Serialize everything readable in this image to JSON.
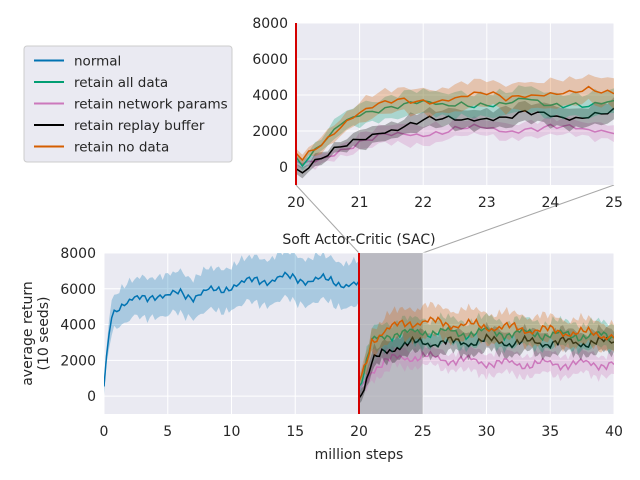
{
  "chart_data": [
    {
      "id": "main",
      "type": "line",
      "title": "Soft Actor-Critic (SAC)",
      "xlabel": "million steps",
      "ylabel": [
        "average return",
        "(10 seeds)"
      ],
      "xlim": [
        0,
        40
      ],
      "ylim": [
        -1000,
        8000
      ],
      "xticks": [
        0,
        5,
        10,
        15,
        20,
        25,
        30,
        35,
        40
      ],
      "yticks": [
        0,
        2000,
        4000,
        6000,
        8000
      ],
      "grid": true,
      "event_line_x": 20,
      "zoom_region": [
        20,
        25
      ],
      "series": [
        {
          "name": "normal",
          "color": "#0173b2",
          "x": [
            0,
            0.5,
            1,
            2,
            3,
            4,
            5,
            6,
            7,
            8,
            9,
            10,
            11,
            12,
            13,
            14,
            15,
            16,
            17,
            18,
            19,
            20
          ],
          "values": [
            500,
            4500,
            5000,
            5200,
            5500,
            5700,
            5500,
            5800,
            5600,
            5800,
            5900,
            6200,
            6300,
            6500,
            6500,
            6600,
            6600,
            6500,
            6500,
            6400,
            6300,
            6200
          ]
        },
        {
          "name": "retain all data",
          "color": "#029e73",
          "x": [
            20,
            20.5,
            21,
            22,
            23,
            24,
            25,
            26,
            28,
            30,
            32,
            34,
            36,
            38,
            40
          ],
          "values": [
            500,
            1500,
            3000,
            3400,
            3500,
            3500,
            3600,
            3600,
            3500,
            3600,
            3500,
            3500,
            3400,
            3400,
            3300
          ]
        },
        {
          "name": "retain network params",
          "color": "#cc78bc",
          "x": [
            20,
            20.5,
            21,
            22,
            23,
            24,
            25,
            26,
            28,
            30,
            32,
            34,
            36,
            38,
            40
          ],
          "values": [
            300,
            800,
            1500,
            1900,
            2100,
            2200,
            2200,
            2100,
            2000,
            1900,
            1800,
            1800,
            1800,
            1800,
            1800
          ]
        },
        {
          "name": "retain replay buffer",
          "color": "#000000",
          "x": [
            20,
            20.5,
            21,
            22,
            23,
            24,
            25,
            26,
            28,
            30,
            32,
            34,
            36,
            38,
            40
          ],
          "values": [
            0,
            600,
            1800,
            2500,
            2800,
            2900,
            3000,
            3000,
            3000,
            3100,
            3000,
            3000,
            3000,
            3000,
            3000
          ]
        },
        {
          "name": "retain no data",
          "color": "#d55e00",
          "x": [
            20,
            20.5,
            21,
            22,
            23,
            24,
            25,
            26,
            28,
            30,
            32,
            34,
            36,
            38,
            40
          ],
          "values": [
            700,
            1600,
            3100,
            3700,
            3900,
            4100,
            4200,
            4100,
            4000,
            3900,
            3800,
            3700,
            3600,
            3500,
            3400
          ]
        }
      ]
    },
    {
      "id": "inset",
      "type": "line",
      "xlim": [
        20,
        25
      ],
      "ylim": [
        -1000,
        8000
      ],
      "xticks": [
        20,
        21,
        22,
        23,
        24,
        25
      ],
      "yticks": [
        0,
        2000,
        4000,
        6000,
        8000
      ],
      "grid": true,
      "event_line_x": 20,
      "legend_location": "left of inset",
      "series": [
        {
          "name": "normal",
          "color": "#0173b2",
          "x": [],
          "values": []
        },
        {
          "name": "retain all data",
          "color": "#029e73",
          "x": [
            20,
            20.1,
            20.3,
            20.5,
            20.7,
            21,
            21.3,
            21.6,
            22,
            22.3,
            22.6,
            23,
            23.3,
            23.6,
            24,
            24.3,
            24.6,
            25
          ],
          "values": [
            500,
            200,
            800,
            1500,
            2300,
            3000,
            3300,
            3400,
            3500,
            3400,
            3600,
            3500,
            3400,
            3700,
            3500,
            3600,
            3400,
            3500
          ]
        },
        {
          "name": "retain network params",
          "color": "#cc78bc",
          "x": [
            20,
            20.1,
            20.3,
            20.5,
            20.7,
            21,
            21.3,
            21.6,
            22,
            22.3,
            22.6,
            23,
            23.3,
            23.6,
            24,
            24.3,
            24.6,
            25
          ],
          "values": [
            300,
            100,
            400,
            700,
            1000,
            1300,
            1600,
            1800,
            1900,
            2000,
            2100,
            2100,
            2000,
            2200,
            2200,
            2100,
            2000,
            2100
          ]
        },
        {
          "name": "retain replay buffer",
          "color": "#000000",
          "x": [
            20,
            20.1,
            20.3,
            20.5,
            20.7,
            21,
            21.3,
            21.6,
            22,
            22.3,
            22.6,
            23,
            23.3,
            23.6,
            24,
            24.3,
            24.6,
            25
          ],
          "values": [
            0,
            -200,
            300,
            600,
            1000,
            1500,
            2000,
            2200,
            2500,
            2600,
            2700,
            2800,
            2700,
            2900,
            2900,
            2800,
            2900,
            3000
          ]
        },
        {
          "name": "retain no data",
          "color": "#d55e00",
          "x": [
            20,
            20.1,
            20.3,
            20.5,
            20.7,
            21,
            21.3,
            21.6,
            22,
            22.3,
            22.6,
            23,
            23.3,
            23.6,
            24,
            24.3,
            24.6,
            25
          ],
          "values": [
            700,
            300,
            1000,
            1600,
            2400,
            3100,
            3400,
            3600,
            3700,
            3800,
            3900,
            4000,
            3800,
            4100,
            4100,
            4000,
            4200,
            4200
          ]
        }
      ]
    }
  ]
}
